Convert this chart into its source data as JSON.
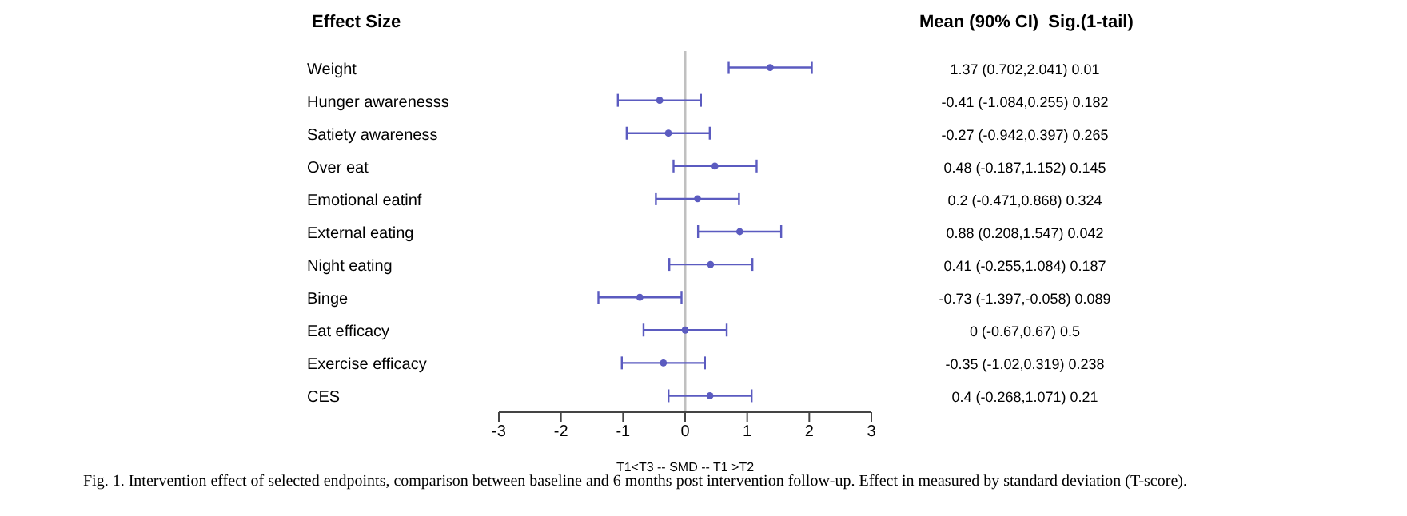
{
  "chart_data": {
    "type": "scatter",
    "orientation": "horizontal",
    "title": "Effect Size",
    "xlabel": "T1<T3 -- SMD -- T1 >T2",
    "categories": [
      "Weight",
      "Hunger awarenesss",
      "Satiety awareness",
      "Over eat",
      "Emotional eatinf",
      "External eating",
      "Night eating",
      "Binge",
      "Eat efficacy",
      "Exercise efficacy",
      "CES"
    ],
    "values": [
      1.37,
      -0.41,
      -0.27,
      0.48,
      0.2,
      0.88,
      0.41,
      -0.73,
      0,
      -0.35,
      0.4
    ],
    "errors": [
      [
        0.702,
        2.041
      ],
      [
        -1.084,
        0.255
      ],
      [
        -0.942,
        0.397
      ],
      [
        -0.187,
        1.152
      ],
      [
        -0.471,
        0.868
      ],
      [
        0.208,
        1.547
      ],
      [
        -0.255,
        1.084
      ],
      [
        -1.397,
        -0.058
      ],
      [
        -0.67,
        0.67
      ],
      [
        -1.02,
        0.319
      ],
      [
        -0.268,
        1.071
      ]
    ],
    "color": "#5b5bc0",
    "xlim": [
      -3,
      3
    ],
    "xticks": [
      -3,
      -2,
      -1,
      0,
      1,
      2,
      3
    ],
    "ref_lines": [
      {
        "axis": "x",
        "value": 0,
        "color": "#c0c0c0"
      }
    ],
    "marker": "circle",
    "grid": false,
    "legend": false,
    "annotations": [
      "Mean (90% CI)  Sig.(1-tail)",
      "1.37 (0.702,2.041)  0.01",
      "-0.41 (-1.084,0.255)  0.182",
      "-0.27 (-0.942,0.397)  0.265",
      "0.48 (-0.187,1.152)  0.145",
      "0.2 (-0.471,0.868)  0.324",
      "0.88 (0.208,1.547)  0.042",
      "0.41 (-0.255,1.084)  0.187",
      "-0.73 (-1.397,-0.058)  0.089",
      "0 (-0.67,0.67)  0.5",
      "-0.35 (-1.02,0.319)  0.238",
      "0.4 (-0.268,1.071)  0.21",
      "Fig. 1. Intervention effect of selected endpoints, comparison between baseline and 6 months post intervention follow-up. Effect in measured by standard deviation (T-score)."
    ]
  }
}
